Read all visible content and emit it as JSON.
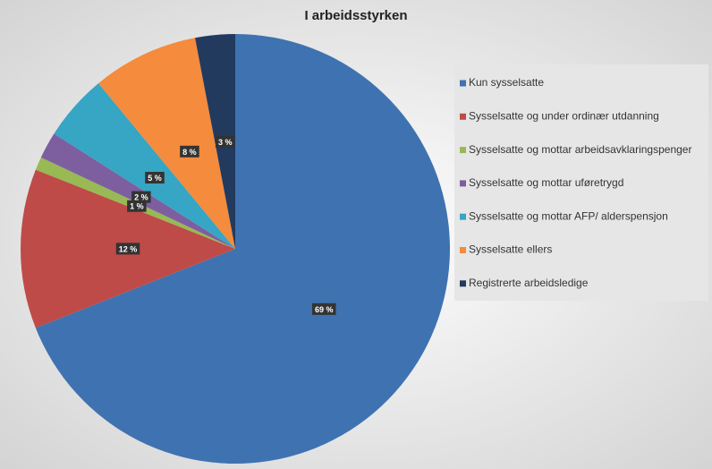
{
  "chart_data": {
    "type": "pie",
    "title": "I arbeidsstyrken",
    "categories": [
      "Kun sysselsatte",
      "Sysselsatte og under ordinær utdanning",
      "Sysselsatte og mottar arbeidsavklaringspenger",
      "Sysselsatte og mottar uføretrygd",
      "Sysselsatte og mottar AFP/ alderspensjon",
      "Sysselsatte ellers",
      "Registrerte arbeidsledige"
    ],
    "values": [
      69,
      12,
      1,
      2,
      5,
      8,
      3
    ],
    "value_labels": [
      "69 %",
      "12 %",
      "1 %",
      "2 %",
      "5 %",
      "8 %",
      "3 %"
    ],
    "colors": [
      "#3f72b0",
      "#be4b48",
      "#98b954",
      "#7d5fa0",
      "#37a5c4",
      "#f58b3c",
      "#223a5e"
    ],
    "legend": "right"
  }
}
